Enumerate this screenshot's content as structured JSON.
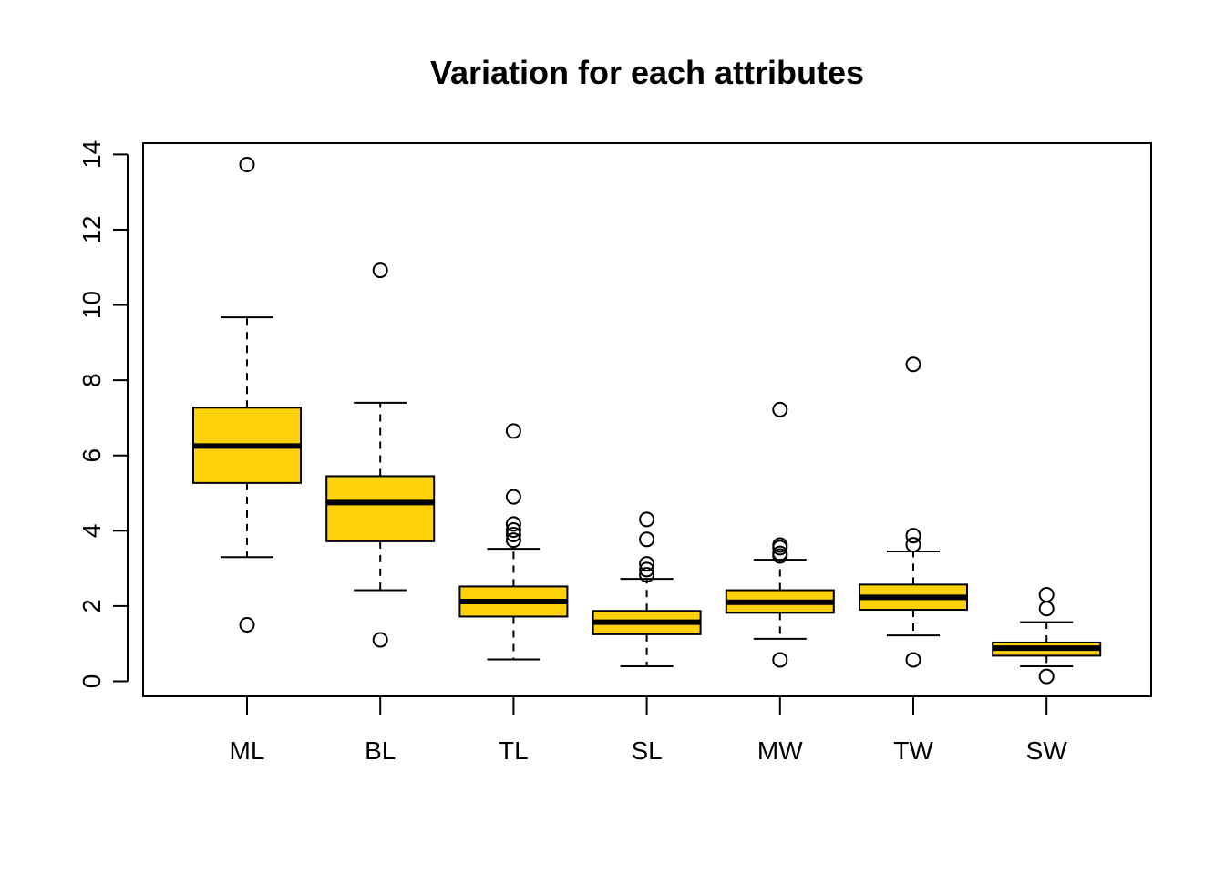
{
  "chart_data": {
    "type": "boxplot",
    "title": "Variation for each attributes",
    "xlabel": "",
    "ylabel": "",
    "ylim": [
      -0.4,
      14.3
    ],
    "yticks": [
      0,
      2,
      4,
      6,
      8,
      10,
      12,
      14
    ],
    "ytick_labels": [
      "0",
      "2",
      "4",
      "6",
      "8",
      "10",
      "12",
      "14"
    ],
    "categories": [
      "ML",
      "BL",
      "TL",
      "SL",
      "MW",
      "TW",
      "SW"
    ],
    "box_fill": "#FFD10B",
    "box_stroke": "#000000",
    "grid": false,
    "boxes": [
      {
        "label": "ML",
        "whisker_low": 3.3,
        "q1": 5.27,
        "median": 6.25,
        "q3": 7.27,
        "whisker_high": 9.67,
        "outliers": [
          13.73,
          1.5
        ]
      },
      {
        "label": "BL",
        "whisker_low": 2.42,
        "q1": 3.72,
        "median": 4.75,
        "q3": 5.45,
        "whisker_high": 7.4,
        "outliers": [
          10.92,
          1.1
        ]
      },
      {
        "label": "TL",
        "whisker_low": 0.58,
        "q1": 1.72,
        "median": 2.12,
        "q3": 2.52,
        "whisker_high": 3.52,
        "outliers": [
          6.65,
          4.9,
          4.18,
          4.02,
          3.9,
          3.75
        ]
      },
      {
        "label": "SL",
        "whisker_low": 0.4,
        "q1": 1.25,
        "median": 1.57,
        "q3": 1.87,
        "whisker_high": 2.72,
        "outliers": [
          4.3,
          3.77,
          3.12,
          2.97,
          2.83
        ]
      },
      {
        "label": "MW",
        "whisker_low": 1.13,
        "q1": 1.82,
        "median": 2.1,
        "q3": 2.42,
        "whisker_high": 3.23,
        "outliers": [
          7.22,
          3.62,
          3.55,
          3.4,
          3.33,
          0.57
        ]
      },
      {
        "label": "TW",
        "whisker_low": 1.22,
        "q1": 1.9,
        "median": 2.23,
        "q3": 2.57,
        "whisker_high": 3.45,
        "outliers": [
          8.42,
          3.87,
          3.63,
          0.57
        ]
      },
      {
        "label": "SW",
        "whisker_low": 0.4,
        "q1": 0.68,
        "median": 0.88,
        "q3": 1.03,
        "whisker_high": 1.57,
        "outliers": [
          2.3,
          1.93,
          0.13
        ]
      }
    ]
  }
}
